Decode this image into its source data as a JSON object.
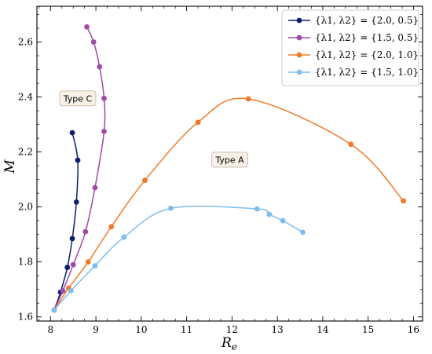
{
  "chart_data": {
    "type": "line",
    "xlabel": "R",
    "xlabel_sub": "e",
    "ylabel": "M",
    "xlim": [
      7.7,
      16.2
    ],
    "ylim": [
      1.585,
      2.73
    ],
    "xticks": [
      8,
      9,
      10,
      11,
      12,
      13,
      14,
      15,
      16
    ],
    "yticks": [
      1.6,
      1.8,
      2.0,
      2.2,
      2.4,
      2.6
    ],
    "ytick_labels": [
      "1.6",
      "1.8",
      "2.0",
      "2.2",
      "2.4",
      "2.6"
    ],
    "legend_position": "top-right",
    "series": [
      {
        "name": "{λ1, λ2} = {2.0, 0.5}",
        "color": "#0b1f6e",
        "points": [
          [
            8.08,
            1.625
          ],
          [
            8.22,
            1.69
          ],
          [
            8.37,
            1.78
          ],
          [
            8.48,
            1.885
          ],
          [
            8.57,
            2.018
          ],
          [
            8.6,
            2.17
          ],
          [
            8.48,
            2.27
          ]
        ]
      },
      {
        "name": "{λ1, λ2} = {1.5, 0.5}",
        "color": "#a04aa8",
        "points": [
          [
            8.08,
            1.625
          ],
          [
            8.27,
            1.695
          ],
          [
            8.5,
            1.79
          ],
          [
            8.77,
            1.91
          ],
          [
            8.98,
            2.07
          ],
          [
            9.18,
            2.275
          ],
          [
            9.18,
            2.395
          ],
          [
            9.08,
            2.51
          ],
          [
            8.95,
            2.6
          ],
          [
            8.8,
            2.655
          ]
        ]
      },
      {
        "name": "{λ1, λ2} = {2.0, 1.0}",
        "color": "#f07a2a",
        "points": [
          [
            8.08,
            1.625
          ],
          [
            8.4,
            1.705
          ],
          [
            8.83,
            1.8
          ],
          [
            9.34,
            1.928
          ],
          [
            10.08,
            2.097
          ],
          [
            11.25,
            2.308
          ],
          [
            12.36,
            2.393
          ],
          [
            14.62,
            2.228
          ],
          [
            15.78,
            2.022
          ]
        ]
      },
      {
        "name": "{λ1, λ2} = {1.5, 1.0}",
        "color": "#7fbdf0",
        "points": [
          [
            8.08,
            1.625
          ],
          [
            8.45,
            1.695
          ],
          [
            8.98,
            1.786
          ],
          [
            9.62,
            1.89
          ],
          [
            10.65,
            1.995
          ],
          [
            12.55,
            1.993
          ],
          [
            12.82,
            1.973
          ],
          [
            13.12,
            1.95
          ],
          [
            13.56,
            1.908
          ]
        ]
      }
    ],
    "annotations": [
      {
        "text": "Type C",
        "x": 8.6,
        "y": 2.395
      },
      {
        "text": "Type A",
        "x": 11.95,
        "y": 2.172
      }
    ]
  }
}
